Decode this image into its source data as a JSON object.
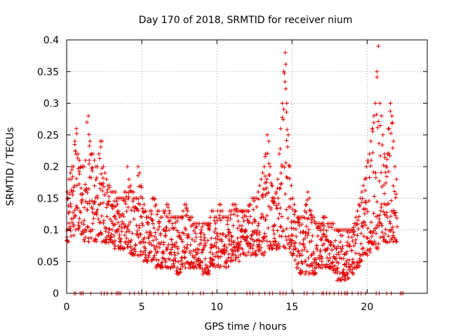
{
  "chart_data": {
    "type": "scatter",
    "title": "Day 170 of 2018, SRMTID for receiver nium",
    "xlabel": "GPS time / hours",
    "ylabel": "SRMTID / TECUs",
    "xlim": [
      0,
      24
    ],
    "ylim": [
      0,
      0.4
    ],
    "x_ticks": [
      0,
      5,
      10,
      15,
      20
    ],
    "x_tick_labels": [
      "0",
      "5",
      "10",
      "15",
      "20"
    ],
    "y_ticks": [
      0,
      0.05,
      0.1,
      0.15,
      0.2,
      0.25,
      0.3,
      0.35,
      0.4
    ],
    "y_tick_labels": [
      "0",
      "0.05",
      "0.1",
      "0.15",
      "0.2",
      "0.25",
      "0.3",
      "0.35",
      "0.4"
    ],
    "grid": true,
    "marker": "+",
    "color": "#e00000",
    "series": [
      {
        "name": "SRMTID",
        "x": [
          0.0,
          0.1,
          0.2,
          0.3,
          0.4,
          0.5,
          0.6,
          0.7,
          0.8,
          0.9,
          1.0,
          1.1,
          1.2,
          1.3,
          1.4,
          1.5,
          1.6,
          1.7,
          1.8,
          1.9,
          2.0,
          2.1,
          2.2,
          2.3,
          2.4,
          2.5,
          2.6,
          2.7,
          2.8,
          2.9,
          3.0,
          3.1,
          3.2,
          3.3,
          3.4,
          3.5,
          3.6,
          3.7,
          3.8,
          3.9,
          4.0,
          4.1,
          4.2,
          4.3,
          4.4,
          4.5,
          4.6,
          4.7,
          4.8,
          4.9,
          5.0,
          5.1,
          5.2,
          5.3,
          5.4,
          5.5,
          5.6,
          5.7,
          5.8,
          5.9,
          6.0,
          6.1,
          6.2,
          6.3,
          6.4,
          6.5,
          6.6,
          6.7,
          6.8,
          6.9,
          7.0,
          7.1,
          7.2,
          7.3,
          7.4,
          7.5,
          7.6,
          7.7,
          7.8,
          7.9,
          8.0,
          8.1,
          8.2,
          8.3,
          8.4,
          8.5,
          8.6,
          8.7,
          8.8,
          8.9,
          9.0,
          9.1,
          9.2,
          9.3,
          9.4,
          9.5,
          9.6,
          9.7,
          9.8,
          9.9,
          10.0,
          10.1,
          10.2,
          10.3,
          10.4,
          10.5,
          10.6,
          10.7,
          10.8,
          10.9,
          11.0,
          11.1,
          11.2,
          11.3,
          11.4,
          11.5,
          11.6,
          11.7,
          11.8,
          11.9,
          12.0,
          12.1,
          12.2,
          12.3,
          12.4,
          12.5,
          12.6,
          12.7,
          12.8,
          12.9,
          13.0,
          13.1,
          13.2,
          13.3,
          13.4,
          13.5,
          13.6,
          13.7,
          13.8,
          13.9,
          14.0,
          14.1,
          14.2,
          14.3,
          14.4,
          14.5,
          14.6,
          14.7,
          14.8,
          14.9,
          15.0,
          15.1,
          15.2,
          15.3,
          15.4,
          15.5,
          15.6,
          15.7,
          15.8,
          15.9,
          16.0,
          16.1,
          16.2,
          16.3,
          16.4,
          16.5,
          16.6,
          16.7,
          16.8,
          16.9,
          17.0,
          17.1,
          17.2,
          17.3,
          17.4,
          17.5,
          17.6,
          17.7,
          17.8,
          17.9,
          18.0,
          18.1,
          18.2,
          18.3,
          18.4,
          18.5,
          18.6,
          18.7,
          18.8,
          18.9,
          19.0,
          19.1,
          19.2,
          19.3,
          19.4,
          19.5,
          19.6,
          19.7,
          19.8,
          19.9,
          20.0,
          20.1,
          20.2,
          20.3,
          20.4,
          20.5,
          20.6,
          20.7,
          20.8,
          20.9,
          21.0,
          21.1,
          21.2,
          21.3,
          21.4,
          21.5,
          21.6,
          21.7,
          21.8,
          21.9,
          22.0,
          22.1,
          22.2,
          22.3,
          22.4,
          22.5,
          22.6,
          22.7,
          22.8
        ],
        "envelope_low": [
          0.08,
          0.08,
          0.09,
          0.09,
          0.09,
          0.09,
          0.1,
          0.1,
          0.1,
          0.09,
          0.09,
          0.08,
          0.08,
          0.08,
          0.08,
          0.08,
          0.08,
          0.08,
          0.08,
          0.08,
          0.09,
          0.09,
          0.09,
          0.08,
          0.08,
          0.08,
          0.08,
          0.08,
          0.08,
          0.08,
          0.08,
          0.07,
          0.07,
          0.07,
          0.07,
          0.07,
          0.07,
          0.07,
          0.07,
          0.07,
          0.07,
          0.07,
          0.06,
          0.06,
          0.06,
          0.06,
          0.06,
          0.06,
          0.06,
          0.06,
          0.06,
          0.05,
          0.05,
          0.05,
          0.05,
          0.05,
          0.04,
          0.04,
          0.04,
          0.04,
          0.04,
          0.04,
          0.04,
          0.04,
          0.04,
          0.04,
          0.04,
          0.04,
          0.04,
          0.04,
          0.04,
          0.04,
          0.04,
          0.03,
          0.03,
          0.03,
          0.03,
          0.04,
          0.04,
          0.04,
          0.04,
          0.04,
          0.04,
          0.04,
          0.04,
          0.04,
          0.04,
          0.04,
          0.04,
          0.04,
          0.03,
          0.03,
          0.03,
          0.03,
          0.03,
          0.04,
          0.04,
          0.04,
          0.04,
          0.04,
          0.04,
          0.04,
          0.04,
          0.04,
          0.04,
          0.04,
          0.04,
          0.04,
          0.05,
          0.05,
          0.05,
          0.05,
          0.05,
          0.05,
          0.05,
          0.05,
          0.05,
          0.06,
          0.06,
          0.06,
          0.06,
          0.06,
          0.06,
          0.06,
          0.06,
          0.06,
          0.06,
          0.06,
          0.06,
          0.06,
          0.06,
          0.06,
          0.07,
          0.07,
          0.07,
          0.07,
          0.07,
          0.07,
          0.07,
          0.07,
          0.07,
          0.07,
          0.07,
          0.07,
          0.07,
          0.07,
          0.07,
          0.07,
          0.07,
          0.06,
          0.06,
          0.05,
          0.05,
          0.04,
          0.04,
          0.03,
          0.03,
          0.03,
          0.03,
          0.03,
          0.03,
          0.03,
          0.03,
          0.03,
          0.03,
          0.03,
          0.04,
          0.04,
          0.04,
          0.04,
          0.04,
          0.04,
          0.04,
          0.04,
          0.04,
          0.04,
          0.04,
          0.03,
          0.03,
          0.03,
          0.02,
          0.02,
          0.02,
          0.02,
          0.02,
          0.02,
          0.02,
          0.02,
          0.03,
          0.03,
          0.03,
          0.04,
          0.04,
          0.04,
          0.04,
          0.05,
          0.05,
          0.05,
          0.05,
          0.06,
          0.06,
          0.06,
          0.07,
          0.07,
          0.07,
          0.07,
          0.07,
          0.07,
          0.07,
          0.07,
          0.08,
          0.08,
          0.08,
          0.08,
          0.08,
          0.08,
          0.08,
          0.08,
          0.08,
          0.08,
          0.08
        ],
        "envelope_high": [
          0.16,
          0.18,
          0.19,
          0.2,
          0.2,
          0.24,
          0.26,
          0.22,
          0.21,
          0.2,
          0.2,
          0.2,
          0.21,
          0.27,
          0.28,
          0.24,
          0.22,
          0.22,
          0.21,
          0.2,
          0.2,
          0.22,
          0.24,
          0.24,
          0.2,
          0.19,
          0.18,
          0.17,
          0.17,
          0.16,
          0.16,
          0.16,
          0.16,
          0.15,
          0.15,
          0.15,
          0.15,
          0.15,
          0.16,
          0.16,
          0.2,
          0.18,
          0.17,
          0.16,
          0.16,
          0.15,
          0.15,
          0.2,
          0.19,
          0.17,
          0.15,
          0.14,
          0.13,
          0.12,
          0.12,
          0.13,
          0.13,
          0.15,
          0.15,
          0.14,
          0.13,
          0.13,
          0.12,
          0.12,
          0.13,
          0.13,
          0.14,
          0.14,
          0.13,
          0.12,
          0.12,
          0.12,
          0.12,
          0.12,
          0.12,
          0.12,
          0.12,
          0.13,
          0.14,
          0.14,
          0.13,
          0.12,
          0.12,
          0.12,
          0.11,
          0.11,
          0.11,
          0.11,
          0.11,
          0.1,
          0.11,
          0.11,
          0.11,
          0.11,
          0.11,
          0.12,
          0.13,
          0.13,
          0.12,
          0.12,
          0.13,
          0.14,
          0.14,
          0.13,
          0.12,
          0.12,
          0.12,
          0.12,
          0.13,
          0.13,
          0.14,
          0.14,
          0.14,
          0.13,
          0.13,
          0.13,
          0.13,
          0.13,
          0.13,
          0.13,
          0.13,
          0.14,
          0.14,
          0.15,
          0.15,
          0.15,
          0.15,
          0.16,
          0.17,
          0.18,
          0.19,
          0.2,
          0.22,
          0.25,
          0.24,
          0.2,
          0.17,
          0.15,
          0.15,
          0.16,
          0.18,
          0.22,
          0.26,
          0.3,
          0.35,
          0.38,
          0.3,
          0.25,
          0.2,
          0.17,
          0.15,
          0.14,
          0.13,
          0.12,
          0.12,
          0.12,
          0.12,
          0.12,
          0.13,
          0.14,
          0.16,
          0.15,
          0.13,
          0.12,
          0.12,
          0.11,
          0.11,
          0.11,
          0.11,
          0.11,
          0.12,
          0.12,
          0.12,
          0.11,
          0.11,
          0.11,
          0.11,
          0.11,
          0.1,
          0.1,
          0.1,
          0.1,
          0.1,
          0.1,
          0.1,
          0.1,
          0.1,
          0.1,
          0.1,
          0.1,
          0.1,
          0.11,
          0.12,
          0.13,
          0.14,
          0.15,
          0.16,
          0.17,
          0.18,
          0.2,
          0.21,
          0.22,
          0.24,
          0.26,
          0.28,
          0.3,
          0.35,
          0.39,
          0.3,
          0.28,
          0.25,
          0.22,
          0.2,
          0.22,
          0.26,
          0.3,
          0.28,
          0.24,
          0.2,
          0.18
        ],
        "zero_points_x": [
          0.5,
          0.6,
          0.9,
          1.0,
          1.1,
          1.6,
          2.3,
          2.5,
          2.7,
          3.0,
          3.3,
          3.4,
          3.5,
          3.6,
          4.2,
          4.5,
          4.8,
          5.0,
          5.3,
          5.8,
          6.1,
          6.4,
          6.8,
          7.3,
          8.1,
          8.4,
          8.9,
          9.1,
          9.7,
          10.7,
          11.2,
          12.0,
          12.2,
          12.4,
          12.8,
          13.2,
          13.5,
          13.7,
          14.2,
          14.4,
          14.6,
          15.1,
          15.8,
          16.0,
          16.4,
          17.0,
          17.1,
          17.3,
          17.5,
          17.8,
          18.1,
          18.3,
          18.5,
          18.6,
          18.7,
          19.0,
          19.4,
          19.6,
          19.9,
          20.6,
          20.8,
          21.3,
          21.6,
          22.2,
          22.3,
          22.4
        ]
      }
    ]
  }
}
